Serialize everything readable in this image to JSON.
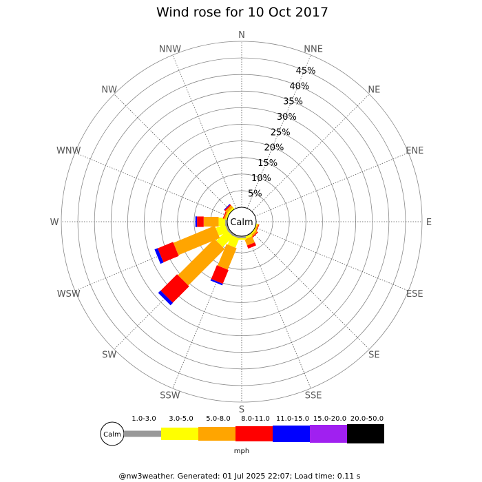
{
  "chart_data": {
    "type": "wind-rose",
    "title": "Wind rose for 10 Oct 2017",
    "calm_label": "Calm",
    "directions": [
      "N",
      "NNE",
      "NE",
      "ENE",
      "E",
      "ESE",
      "SE",
      "SSE",
      "S",
      "SSW",
      "SW",
      "WSW",
      "W",
      "WNW",
      "NW",
      "NNW"
    ],
    "rings": [
      "5%",
      "10%",
      "15%",
      "20%",
      "25%",
      "30%",
      "35%",
      "40%",
      "45%"
    ],
    "r_max_percent": 50,
    "bins": [
      {
        "label": "1.0-3.0",
        "color": "#999999"
      },
      {
        "label": "3.0-5.0",
        "color": "#ffff00"
      },
      {
        "label": "5.0-8.0",
        "color": "#ffa500"
      },
      {
        "label": "8.0-11.0",
        "color": "#ff0000"
      },
      {
        "label": "11.0-15.0",
        "color": "#0000ff"
      },
      {
        "label": "15.0-20.0",
        "color": "#a020f0"
      },
      {
        "label": "20.0-50.0",
        "color": "#000000"
      }
    ],
    "calm_percent": 0,
    "frequencies": {
      "N": [
        0,
        0,
        0,
        0,
        0,
        0,
        0
      ],
      "NNE": [
        0,
        0,
        0,
        0,
        0,
        0,
        0
      ],
      "NE": [
        0,
        0,
        0,
        0,
        0,
        0,
        0
      ],
      "ENE": [
        0,
        0,
        0,
        0,
        0,
        0,
        0
      ],
      "E": [
        0,
        0,
        0,
        0,
        0,
        0,
        0
      ],
      "ESE": [
        0,
        0.3,
        0.4,
        0.2,
        0,
        0,
        0
      ],
      "SE": [
        0,
        0.5,
        0.6,
        0.3,
        0,
        0,
        0
      ],
      "SSE": [
        0.2,
        0.7,
        2.0,
        1.0,
        0,
        0,
        0
      ],
      "S": [
        0.6,
        0.5,
        0,
        0,
        0,
        0,
        0
      ],
      "SSW": [
        0.6,
        3.0,
        7.0,
        4.5,
        0.5,
        0,
        0
      ],
      "SW": [
        0.6,
        4.5,
        15.5,
        7.0,
        1.0,
        0,
        0
      ],
      "WSW": [
        0.6,
        3.0,
        13.5,
        5.0,
        1.0,
        0,
        0
      ],
      "W": [
        0.6,
        2.0,
        4.5,
        2.0,
        0.5,
        0,
        0
      ],
      "WNW": [
        0,
        0.5,
        0.5,
        0.3,
        0,
        0,
        0
      ],
      "NW": [
        0,
        0.6,
        0.8,
        0.4,
        0.2,
        0,
        0
      ],
      "NNW": [
        0,
        0,
        0,
        0,
        0,
        0,
        0
      ]
    },
    "units": "mph",
    "footer": "@nw3weather. Generated: 01 Jul 2025 22:07; Load time: 0.11 s"
  }
}
